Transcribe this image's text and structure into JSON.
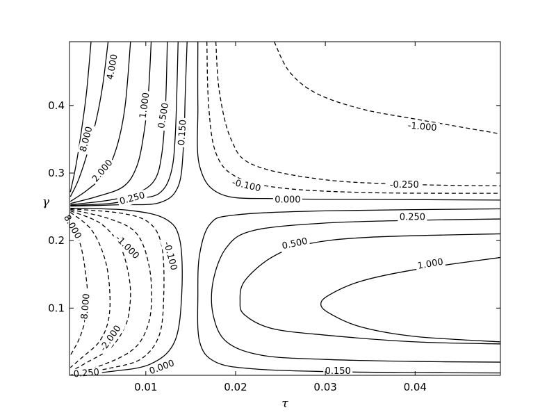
{
  "chart_data": {
    "type": "contour",
    "xlabel": "τ",
    "ylabel": "γ",
    "xlim": [
      0.0015,
      0.0495
    ],
    "ylim": [
      0.0005,
      0.4945
    ],
    "xticks": [
      0.01,
      0.02,
      0.03,
      0.04
    ],
    "xtick_labels": [
      "0.01",
      "0.02",
      "0.03",
      "0.04"
    ],
    "yticks": [
      0.1,
      0.2,
      0.3,
      0.4
    ],
    "ytick_labels": [
      "0.1",
      "0.2",
      "0.3",
      "0.4"
    ],
    "grid": false,
    "linestyle_note": "solid = positive levels, dashed = negative levels",
    "contours": [
      {
        "level": 8.0,
        "label": "8.000",
        "sign": "pos",
        "points": [
          [
            0.0016,
            0.272
          ],
          [
            0.0022,
            0.31
          ],
          [
            0.0028,
            0.36
          ],
          [
            0.0034,
            0.42
          ],
          [
            0.0039,
            0.4945
          ]
        ]
      },
      {
        "level": 4.0,
        "label": "4.000",
        "sign": "pos",
        "points": [
          [
            0.0016,
            0.265
          ],
          [
            0.0025,
            0.29
          ],
          [
            0.0035,
            0.33
          ],
          [
            0.0045,
            0.38
          ],
          [
            0.0052,
            0.43
          ],
          [
            0.0058,
            0.4945
          ]
        ]
      },
      {
        "level": 2.0,
        "label": "2.000",
        "sign": "pos",
        "points": [
          [
            0.0016,
            0.258
          ],
          [
            0.0035,
            0.275
          ],
          [
            0.0055,
            0.3
          ],
          [
            0.0068,
            0.34
          ],
          [
            0.0077,
            0.4
          ],
          [
            0.0083,
            0.4945
          ]
        ]
      },
      {
        "level": 1.0,
        "label": "1.000",
        "sign": "pos",
        "points": [
          [
            0.0016,
            0.255
          ],
          [
            0.0045,
            0.265
          ],
          [
            0.0075,
            0.28
          ],
          [
            0.009,
            0.31
          ],
          [
            0.0098,
            0.36
          ],
          [
            0.0103,
            0.42
          ],
          [
            0.0106,
            0.4945
          ]
        ]
      },
      {
        "level": 0.5,
        "label": "0.500",
        "sign": "pos",
        "points": [
          [
            0.0016,
            0.253
          ],
          [
            0.006,
            0.26
          ],
          [
            0.009,
            0.27
          ],
          [
            0.011,
            0.29
          ],
          [
            0.0118,
            0.33
          ],
          [
            0.0122,
            0.4
          ],
          [
            0.0124,
            0.4945
          ]
        ]
      },
      {
        "level": 0.25,
        "label": "0.250",
        "sign": "pos",
        "points": [
          [
            0.0016,
            0.252
          ],
          [
            0.006,
            0.255
          ],
          [
            0.009,
            0.262
          ],
          [
            0.0115,
            0.27
          ],
          [
            0.0128,
            0.3
          ],
          [
            0.0133,
            0.36
          ],
          [
            0.0136,
            0.4945
          ]
        ]
      },
      {
        "level": 0.15,
        "label": "0.150",
        "sign": "pos",
        "points": [
          [
            0.0016,
            0.251
          ],
          [
            0.007,
            0.253
          ],
          [
            0.0115,
            0.256
          ],
          [
            0.0136,
            0.28
          ],
          [
            0.0142,
            0.34
          ],
          [
            0.0144,
            0.42
          ],
          [
            0.0146,
            0.4945
          ]
        ]
      },
      {
        "level": 0.0,
        "label": "0.000",
        "sign": "pos",
        "points": [
          [
            0.0158,
            0.4945
          ],
          [
            0.0158,
            0.4
          ],
          [
            0.016,
            0.31
          ],
          [
            0.0185,
            0.268
          ],
          [
            0.025,
            0.262
          ],
          [
            0.035,
            0.261
          ],
          [
            0.0495,
            0.26
          ]
        ]
      },
      {
        "level": -0.1,
        "label": "-0.100",
        "sign": "neg",
        "points": [
          [
            0.0168,
            0.4945
          ],
          [
            0.017,
            0.4
          ],
          [
            0.0178,
            0.33
          ],
          [
            0.02,
            0.295
          ],
          [
            0.025,
            0.278
          ],
          [
            0.035,
            0.271
          ],
          [
            0.0495,
            0.27
          ]
        ]
      },
      {
        "level": -0.25,
        "label": "-0.250",
        "sign": "neg",
        "points": [
          [
            0.0178,
            0.4945
          ],
          [
            0.0182,
            0.42
          ],
          [
            0.0195,
            0.35
          ],
          [
            0.022,
            0.312
          ],
          [
            0.03,
            0.29
          ],
          [
            0.04,
            0.283
          ],
          [
            0.0495,
            0.281
          ]
        ]
      },
      {
        "level": -1.0,
        "label": "-1.000",
        "sign": "neg",
        "points": [
          [
            0.0243,
            0.4945
          ],
          [
            0.026,
            0.45
          ],
          [
            0.029,
            0.418
          ],
          [
            0.034,
            0.395
          ],
          [
            0.04,
            0.38
          ],
          [
            0.0495,
            0.358
          ]
        ]
      },
      {
        "level": 0.0,
        "label": "0.000",
        "sign": "pos",
        "points": [
          [
            0.0016,
            0.248
          ],
          [
            0.008,
            0.245
          ],
          [
            0.0122,
            0.232
          ],
          [
            0.0138,
            0.2
          ],
          [
            0.014,
            0.12
          ],
          [
            0.0132,
            0.05
          ],
          [
            0.0105,
            0.017
          ],
          [
            0.006,
            0.006
          ],
          [
            0.0016,
            0.0008
          ]
        ]
      },
      {
        "level": -0.1,
        "label": "-0.100",
        "sign": "neg",
        "points": [
          [
            0.0016,
            0.247
          ],
          [
            0.0075,
            0.24
          ],
          [
            0.0105,
            0.225
          ],
          [
            0.0118,
            0.19
          ],
          [
            0.012,
            0.12
          ],
          [
            0.0115,
            0.06
          ],
          [
            0.0095,
            0.025
          ],
          [
            0.006,
            0.011
          ],
          [
            0.0016,
            0.0015
          ]
        ]
      },
      {
        "level": -0.25,
        "label": "-0.250",
        "sign": "neg",
        "points": [
          [
            0.0016,
            0.246
          ],
          [
            0.006,
            0.232
          ],
          [
            0.009,
            0.21
          ],
          [
            0.0104,
            0.16
          ],
          [
            0.0106,
            0.1
          ],
          [
            0.0098,
            0.06
          ],
          [
            0.0082,
            0.035
          ],
          [
            0.005,
            0.015
          ],
          [
            0.0016,
            0.003
          ]
        ]
      },
      {
        "level": -1.0,
        "label": "-1.000",
        "sign": "neg",
        "points": [
          [
            0.0016,
            0.244
          ],
          [
            0.005,
            0.225
          ],
          [
            0.0072,
            0.19
          ],
          [
            0.0082,
            0.14
          ],
          [
            0.0082,
            0.1
          ],
          [
            0.0076,
            0.07
          ],
          [
            0.006,
            0.04
          ],
          [
            0.0035,
            0.02
          ],
          [
            0.0016,
            0.006
          ]
        ]
      },
      {
        "level": -2.0,
        "label": "-2.000",
        "sign": "neg",
        "points": [
          [
            0.0016,
            0.242
          ],
          [
            0.004,
            0.215
          ],
          [
            0.0055,
            0.17
          ],
          [
            0.006,
            0.12
          ],
          [
            0.0058,
            0.08
          ],
          [
            0.0048,
            0.05
          ],
          [
            0.003,
            0.028
          ],
          [
            0.0016,
            0.012
          ]
        ]
      },
      {
        "level": -8.0,
        "label": "-8.000",
        "sign": "neg",
        "points": [
          [
            0.0016,
            0.235
          ],
          [
            0.0028,
            0.19
          ],
          [
            0.0034,
            0.14
          ],
          [
            0.0035,
            0.11
          ],
          [
            0.0033,
            0.085
          ],
          [
            0.0026,
            0.055
          ],
          [
            0.0016,
            0.03
          ]
        ]
      },
      {
        "level": 0.15,
        "label": "0.150",
        "sign": "pos",
        "points": [
          [
            0.0495,
            0.004
          ],
          [
            0.04,
            0.0045
          ],
          [
            0.03,
            0.006
          ],
          [
            0.022,
            0.01
          ],
          [
            0.0178,
            0.02
          ],
          [
            0.016,
            0.05
          ],
          [
            0.0158,
            0.12
          ],
          [
            0.016,
            0.18
          ],
          [
            0.0172,
            0.225
          ],
          [
            0.02,
            0.238
          ],
          [
            0.03,
            0.244
          ],
          [
            0.0495,
            0.247
          ]
        ]
      },
      {
        "level": 0.25,
        "label": "0.250",
        "sign": "pos",
        "points": [
          [
            0.0495,
            0.02
          ],
          [
            0.04,
            0.021
          ],
          [
            0.03,
            0.024
          ],
          [
            0.023,
            0.03
          ],
          [
            0.019,
            0.05
          ],
          [
            0.0175,
            0.09
          ],
          [
            0.0175,
            0.14
          ],
          [
            0.019,
            0.19
          ],
          [
            0.022,
            0.215
          ],
          [
            0.03,
            0.226
          ],
          [
            0.04,
            0.23
          ],
          [
            0.0495,
            0.232
          ]
        ]
      },
      {
        "level": 0.5,
        "label": "0.500",
        "sign": "pos",
        "points": [
          [
            0.0495,
            0.047
          ],
          [
            0.04,
            0.05
          ],
          [
            0.03,
            0.06
          ],
          [
            0.024,
            0.07
          ],
          [
            0.021,
            0.09
          ],
          [
            0.0205,
            0.11
          ],
          [
            0.021,
            0.14
          ],
          [
            0.024,
            0.175
          ],
          [
            0.028,
            0.195
          ],
          [
            0.035,
            0.205
          ],
          [
            0.0495,
            0.21
          ]
        ]
      },
      {
        "level": 1.0,
        "label": "1.000",
        "sign": "pos",
        "points": [
          [
            0.0495,
            0.05
          ],
          [
            0.04,
            0.058
          ],
          [
            0.034,
            0.072
          ],
          [
            0.0305,
            0.092
          ],
          [
            0.0295,
            0.106
          ],
          [
            0.0305,
            0.12
          ],
          [
            0.034,
            0.14
          ],
          [
            0.04,
            0.157
          ],
          [
            0.0495,
            0.175
          ]
        ]
      }
    ],
    "contour_labels": [
      {
        "text": "8.000",
        "x": 0.0034,
        "y": 0.35,
        "rot": -75
      },
      {
        "text": "4.000",
        "x": 0.0063,
        "y": 0.457,
        "rot": -80
      },
      {
        "text": "2.000",
        "x": 0.0052,
        "y": 0.303,
        "rot": -50
      },
      {
        "text": "1.000",
        "x": 0.0099,
        "y": 0.4,
        "rot": -82
      },
      {
        "text": "0.500",
        "x": 0.012,
        "y": 0.385,
        "rot": -80
      },
      {
        "text": "0.250",
        "x": 0.0085,
        "y": 0.262,
        "rot": -15
      },
      {
        "text": "0.150",
        "x": 0.0141,
        "y": 0.36,
        "rot": -86
      },
      {
        "text": "-0.100",
        "x": 0.0212,
        "y": 0.281,
        "rot": 13
      },
      {
        "text": "0.000",
        "x": 0.0258,
        "y": 0.26,
        "rot": 0
      },
      {
        "text": "-0.250",
        "x": 0.0388,
        "y": 0.282,
        "rot": 0
      },
      {
        "text": "-1.000",
        "x": 0.0408,
        "y": 0.368,
        "rot": 5
      },
      {
        "text": "0.250",
        "x": 0.0397,
        "y": 0.234,
        "rot": 0
      },
      {
        "text": "0.500",
        "x": 0.0266,
        "y": 0.195,
        "rot": -12
      },
      {
        "text": "1.000",
        "x": 0.0417,
        "y": 0.165,
        "rot": -10
      },
      {
        "text": "0.150",
        "x": 0.0314,
        "y": 0.006,
        "rot": 0
      },
      {
        "text": "0.000",
        "x": 0.0118,
        "y": 0.012,
        "rot": -20
      },
      {
        "text": "-0.100",
        "x": 0.0127,
        "y": 0.177,
        "rot": 75
      },
      {
        "text": "-1.000",
        "x": 0.0079,
        "y": 0.19,
        "rot": 45
      },
      {
        "text": "-8.000",
        "x": 0.0033,
        "y": 0.1,
        "rot": -85
      },
      {
        "text": "-2.000",
        "x": 0.0061,
        "y": 0.055,
        "rot": -55
      },
      {
        "text": "-0.250",
        "x": 0.0032,
        "y": 0.003,
        "rot": -5
      },
      {
        "text": "8.000",
        "x": 0.0018,
        "y": 0.22,
        "rot": 60
      }
    ]
  }
}
